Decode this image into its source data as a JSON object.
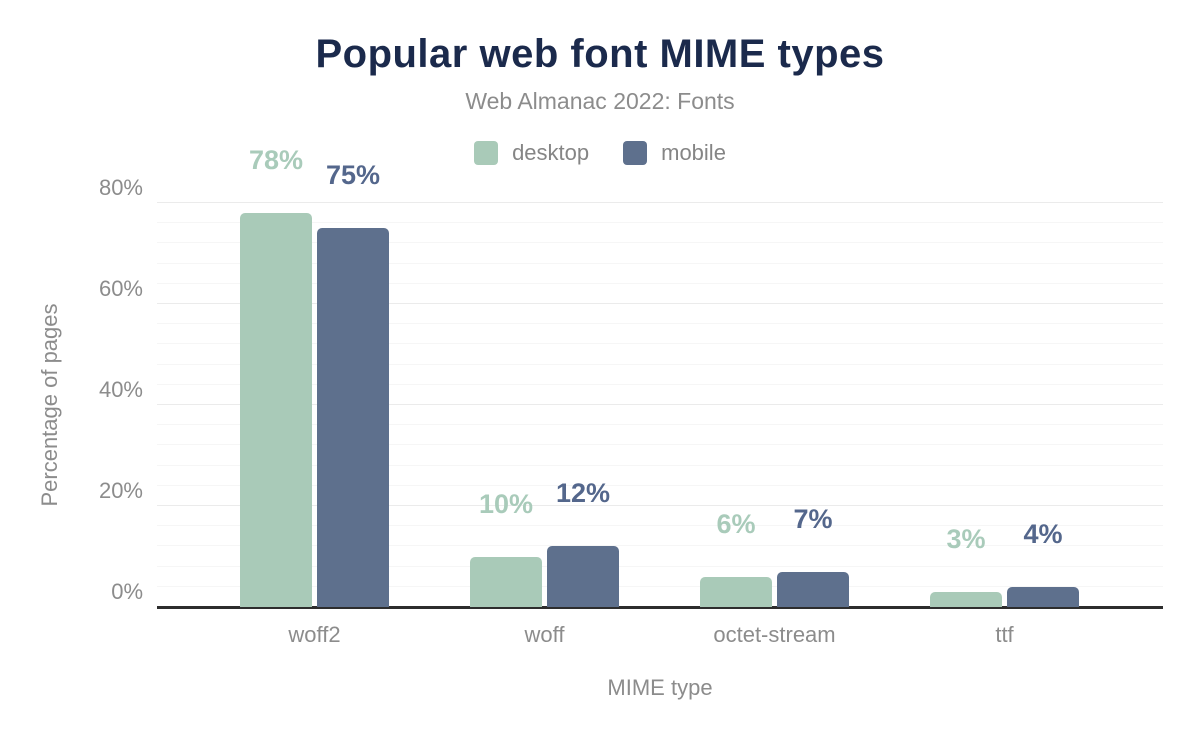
{
  "title": "Popular web font MIME types",
  "subtitle": "Web Almanac 2022: Fonts",
  "colors": {
    "title_text": "#1b2a4c",
    "axis_text": "#8c8c8c",
    "axis_line": "#2d2d2d",
    "grid_major": "#ebebeb",
    "grid_minor": "#f6f6f6",
    "desktop": "#a9cab8",
    "mobile": "#5e708d",
    "desktop_label": "#a9cbba",
    "mobile_label": "#54678c"
  },
  "legend": {
    "items": [
      {
        "label": "desktop",
        "color": "#a9cab8"
      },
      {
        "label": "mobile",
        "color": "#5e708d"
      }
    ]
  },
  "chart_data": {
    "type": "bar",
    "title": "Popular web font MIME types",
    "subtitle": "Web Almanac 2022: Fonts",
    "categories": [
      "woff2",
      "woff",
      "octet-stream",
      "ttf"
    ],
    "series": [
      {
        "name": "desktop",
        "values": [
          78,
          10,
          6,
          3
        ],
        "labels": [
          "78%",
          "10%",
          "6%",
          "3%"
        ],
        "color": "#a9cab8",
        "label_color": "#a9cbba"
      },
      {
        "name": "mobile",
        "values": [
          75,
          12,
          7,
          4
        ],
        "labels": [
          "75%",
          "12%",
          "7%",
          "4%"
        ],
        "color": "#5e708d",
        "label_color": "#54678c"
      }
    ],
    "xlabel": "MIME type",
    "ylabel": "Percentage of pages",
    "ylim": [
      0,
      80
    ],
    "y_ticks": [
      "0%",
      "20%",
      "40%",
      "60%",
      "80%"
    ],
    "y_tick_values": [
      0,
      20,
      40,
      60,
      80
    ],
    "minor_grid_step_pct": 4,
    "grid": true,
    "legend_position": "top"
  }
}
